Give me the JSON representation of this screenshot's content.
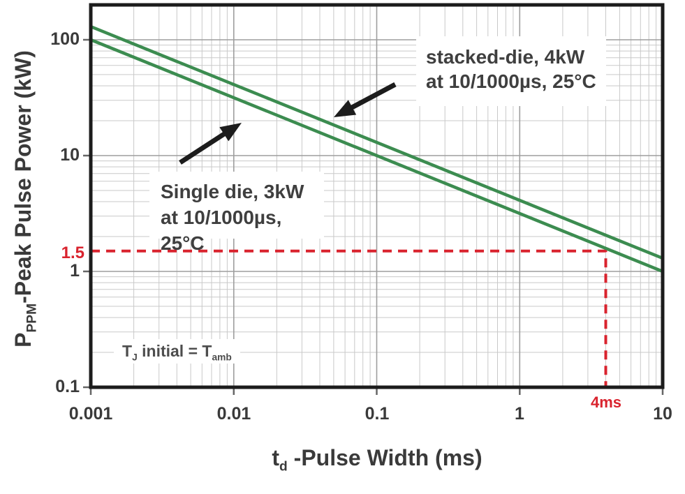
{
  "chart_data": {
    "type": "line",
    "title": "",
    "x_axis": {
      "label_main": "t",
      "label_sub": "d",
      "label_rest": " -Pulse Width (ms)",
      "scale": "log",
      "min": 0.001,
      "max": 10,
      "ticks": [
        {
          "v": 0.001,
          "label": "0.001"
        },
        {
          "v": 0.01,
          "label": "0.01"
        },
        {
          "v": 0.1,
          "label": "0.1"
        },
        {
          "v": 1,
          "label": "1"
        },
        {
          "v": 10,
          "label": "10"
        }
      ]
    },
    "y_axis": {
      "label_main": "P",
      "label_sub": "PPM",
      "label_rest": "-Peak Pulse Power (kW)",
      "scale": "log",
      "min": 0.1,
      "max": 200,
      "ticks": [
        {
          "v": 100,
          "label": "100"
        },
        {
          "v": 10,
          "label": "10"
        },
        {
          "v": 1,
          "label": "1"
        },
        {
          "v": 0.1,
          "label": "0.1"
        }
      ]
    },
    "grid": true,
    "legend": "none",
    "series": [
      {
        "name": "stacked-die, 4kW at 10/1000µs, 25°C",
        "color": "#3c8c50",
        "points": [
          [
            0.001,
            130
          ],
          [
            10,
            1.3
          ]
        ]
      },
      {
        "name": "Single die, 3kW at 10/1000µs, 25°C",
        "color": "#3c8c50",
        "points": [
          [
            0.001,
            100
          ],
          [
            10,
            1.0
          ]
        ]
      }
    ],
    "reference": {
      "x": 4,
      "y": 1.5,
      "x_label": "4ms",
      "y_label": "1.5",
      "color": "#d9232e"
    },
    "annotations": [
      {
        "line1": "stacked-die, 4kW",
        "line2": "at 10/1000µs, 25°C"
      },
      {
        "line1": "Single die, 3kW",
        "line2": "at 10/1000µs, 25°C"
      },
      {
        "t1": "T",
        "s1": "J",
        "mid": " initial = T",
        "s2": "amb"
      }
    ],
    "colors": {
      "border": "#1c1c1c",
      "grid_minor": "#c9c9c9",
      "grid_major": "#9e9e9e",
      "tick": "#666666",
      "text": "#3a3a3a",
      "arrow": "#1c1c1c"
    }
  }
}
